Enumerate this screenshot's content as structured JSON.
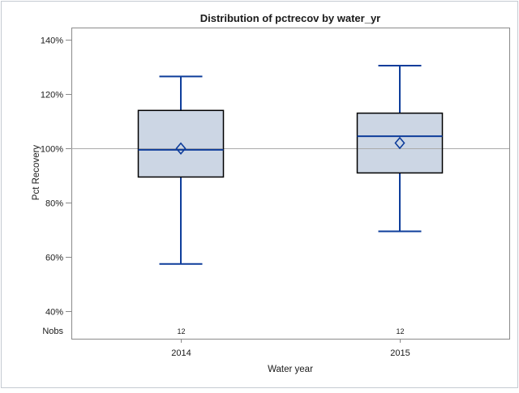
{
  "chart_data": {
    "type": "boxplot",
    "title": "Distribution of pctrecov by water_yr",
    "xlabel": "Water year",
    "ylabel": "Pct Recovery",
    "nobs_label": "Nobs",
    "categories": [
      "2014",
      "2015"
    ],
    "nobs": [
      "12",
      "12"
    ],
    "yticks": [
      140,
      120,
      100,
      80,
      60,
      40
    ],
    "ytick_suffix": "%",
    "ylim": [
      30,
      144.5
    ],
    "reference_line": 100,
    "grid": "off",
    "legend": "none",
    "series": [
      {
        "category": "2014",
        "whisker_low": 57.5,
        "q1": 89.5,
        "median": 99.5,
        "q3": 114,
        "whisker_high": 126.5,
        "mean": 100
      },
      {
        "category": "2015",
        "whisker_low": 69.5,
        "q1": 91,
        "median": 104.5,
        "q3": 113,
        "whisker_high": 130.5,
        "mean": 102
      }
    ],
    "colors": {
      "box_fill": "#ccd6e4",
      "box_border": "#000000",
      "line_blue": "#0e3d9b",
      "reference_line": "#ababab",
      "axis_frame": "#8a8a8a",
      "text": "#1a1a1a",
      "outer_border": "#c5cbd2",
      "background": "#ffffff"
    }
  }
}
